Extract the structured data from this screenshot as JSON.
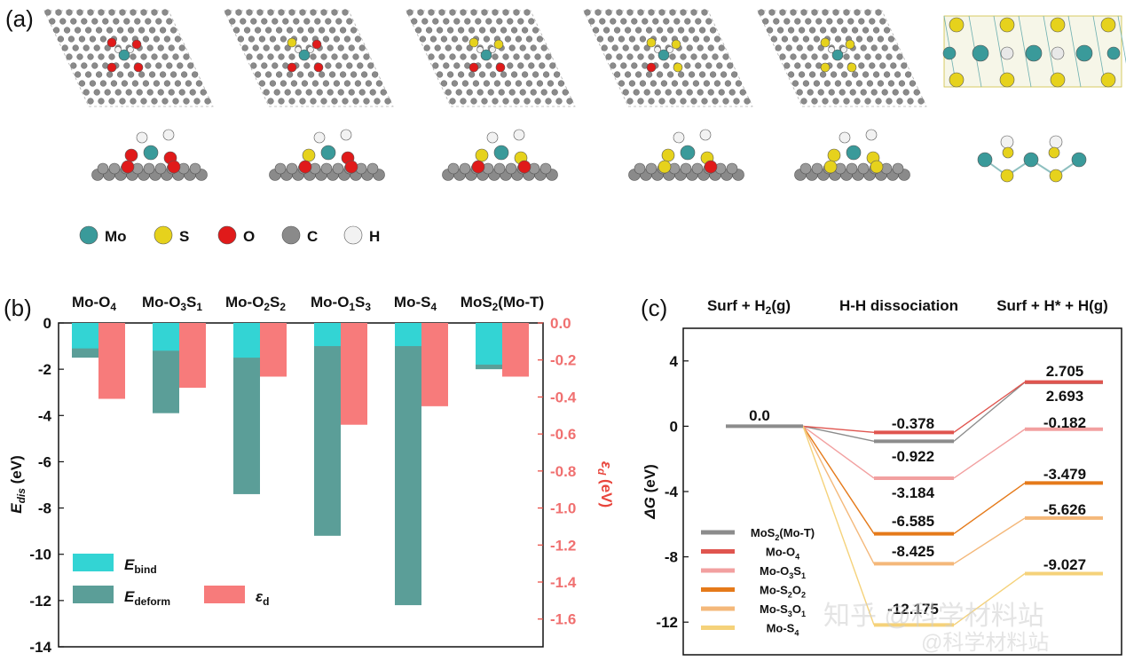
{
  "panel_a": {
    "label": "(a)",
    "legend": [
      {
        "name": "Mo",
        "color": "#3a9a9a"
      },
      {
        "name": "S",
        "color": "#e6d21c"
      },
      {
        "name": "O",
        "color": "#e01a1a"
      },
      {
        "name": "C",
        "color": "#8a8a8a"
      },
      {
        "name": "H",
        "color": "#f2f2f2"
      }
    ],
    "structures": [
      {
        "S": 0,
        "O": 4
      },
      {
        "S": 1,
        "O": 3
      },
      {
        "S": 2,
        "O": 2
      },
      {
        "S": 3,
        "O": 1
      },
      {
        "S": 4,
        "O": 0
      }
    ]
  },
  "panel_b": {
    "label": "(b)",
    "y_left_unit": "(eV)",
    "y_right_unit": "(eV)",
    "legend": {
      "bind": "bind",
      "deform": "deform",
      "eps": "d"
    }
  },
  "panel_c": {
    "label": "(c)",
    "header_h2_label": "H-H dissociation",
    "y_label_unit": "(eV)",
    "value_labels": {
      "zero": "0.0",
      "mid": [
        "-0.378",
        "-0.922",
        "-3.184",
        "-6.585",
        "-8.425",
        "-12.175"
      ],
      "final": [
        "2.705",
        "2.693",
        "-0.182",
        "-3.479",
        "-5.626",
        "-9.027"
      ]
    }
  },
  "watermark": {
    "text1": "知乎 @科学材料站",
    "text2": "@科学材料站"
  },
  "chart_data": [
    {
      "type": "bar",
      "panel": "b",
      "categories": [
        "Mo-O4",
        "Mo-O3S1",
        "Mo-O2S2",
        "Mo-O1S3",
        "Mo-S4",
        "MoS2(Mo-T)"
      ],
      "series": [
        {
          "name": "E_bind",
          "axis": "left",
          "color": "#33d4d4",
          "values": [
            -1.1,
            -1.2,
            -1.5,
            -1.0,
            -1.0,
            -1.8
          ]
        },
        {
          "name": "E_deform",
          "axis": "left",
          "color": "#5b9e98",
          "values": [
            -1.5,
            -3.9,
            -7.4,
            -9.2,
            -12.2,
            -2.0
          ]
        },
        {
          "name": "ε_d",
          "axis": "right",
          "color": "#f77b7b",
          "values": [
            -0.41,
            -0.35,
            -0.29,
            -0.55,
            -0.45,
            -0.29
          ]
        }
      ],
      "ylabel_left": "E_dis (eV)",
      "ylabel_right": "ε_d (eV)",
      "ylim_left": [
        -14,
        0
      ],
      "yticks_left": [
        0,
        -2,
        -4,
        -6,
        -8,
        -10,
        -12,
        -14
      ],
      "ylim_right": [
        -1.75,
        0
      ],
      "yticks_right": [
        0.0,
        -0.2,
        -0.4,
        -0.6,
        -0.8,
        -1.0,
        -1.2,
        -1.4,
        -1.6
      ],
      "legend_position": "bottom-left"
    },
    {
      "type": "line",
      "panel": "c",
      "categories": [
        "Surf + H2(g)",
        "H-H dissociation",
        "Surf + H* + H(g)"
      ],
      "series": [
        {
          "name": "MoS2(Mo-T)",
          "color": "#8c8c8c",
          "values": [
            0.0,
            -0.922,
            2.693
          ]
        },
        {
          "name": "Mo-O4",
          "color": "#e0554f",
          "values": [
            0.0,
            -0.378,
            2.705
          ]
        },
        {
          "name": "Mo-O3S1",
          "color": "#f2a0a0",
          "values": [
            0.0,
            -3.184,
            -0.182
          ]
        },
        {
          "name": "Mo-S2O2",
          "color": "#e57a1a",
          "values": [
            0.0,
            -6.585,
            -3.479
          ]
        },
        {
          "name": "Mo-S3O1",
          "color": "#f4b87a",
          "values": [
            0.0,
            -8.425,
            -5.626
          ]
        },
        {
          "name": "Mo-S4",
          "color": "#f5d27a",
          "values": [
            0.0,
            -12.175,
            -9.027
          ]
        }
      ],
      "ylabel": "ΔG (eV)",
      "ylim": [
        -14,
        6
      ],
      "yticks": [
        4,
        0,
        -4,
        -8,
        -12
      ],
      "legend_position": "bottom-left"
    }
  ]
}
